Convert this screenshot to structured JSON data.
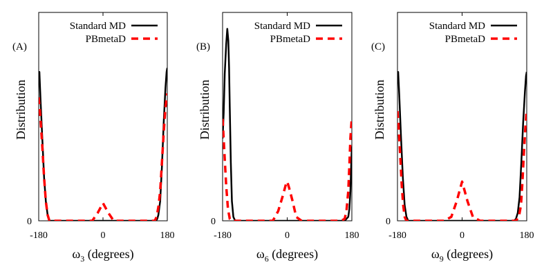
{
  "chart_data": [
    {
      "type": "line",
      "panel_label": "(A)",
      "xlabel_symbol": "ω",
      "xlabel_sub": "3",
      "xlabel_rest": " (degrees)",
      "ylabel": "Distribution",
      "xlim": [
        -180,
        180
      ],
      "ylim": [
        0,
        1
      ],
      "xticks": [
        "-180",
        "0",
        "180"
      ],
      "yticks": [
        "0"
      ],
      "legend_position": "top-right",
      "series": [
        {
          "name": "Standard MD",
          "color": "#000000",
          "style": "solid",
          "x": [
            -180,
            -178,
            -175,
            -170,
            -165,
            -160,
            -155,
            -150,
            -140,
            -100,
            -50,
            0,
            50,
            100,
            140,
            148,
            152,
            155,
            160,
            165,
            170,
            175,
            178,
            180
          ],
          "y": [
            0.72,
            0.76,
            0.62,
            0.42,
            0.22,
            0.1,
            0.03,
            0.0,
            0.0,
            0.0,
            0.0,
            0.0,
            0.0,
            0.0,
            0.0,
            0.0,
            0.01,
            0.03,
            0.1,
            0.28,
            0.5,
            0.68,
            0.76,
            0.78
          ]
        },
        {
          "name": "PBmetaD",
          "color": "#ff0000",
          "style": "dashed",
          "x": [
            -180,
            -175,
            -170,
            -165,
            -160,
            -155,
            -150,
            -145,
            -100,
            -50,
            -30,
            -15,
            0,
            15,
            30,
            50,
            100,
            145,
            150,
            155,
            160,
            165,
            170,
            175,
            180
          ],
          "y": [
            0.63,
            0.52,
            0.38,
            0.22,
            0.1,
            0.03,
            0.0,
            0.0,
            0.0,
            0.0,
            0.0,
            0.04,
            0.09,
            0.04,
            0.0,
            0.0,
            0.0,
            0.0,
            0.02,
            0.07,
            0.15,
            0.3,
            0.45,
            0.58,
            0.65
          ]
        }
      ]
    },
    {
      "type": "line",
      "panel_label": "(B)",
      "xlabel_symbol": "ω",
      "xlabel_sub": "6",
      "xlabel_rest": " (degrees)",
      "ylabel": "Distribution",
      "xlim": [
        -180,
        180
      ],
      "ylim": [
        0,
        1
      ],
      "xticks": [
        "-180",
        "0",
        "180"
      ],
      "yticks": [
        "0"
      ],
      "legend_position": "top-right",
      "series": [
        {
          "name": "Standard MD",
          "color": "#000000",
          "style": "solid",
          "x": [
            -180,
            -177,
            -174,
            -170,
            -167,
            -164,
            -162,
            -160,
            -157,
            -154,
            -150,
            -145,
            -100,
            -50,
            0,
            50,
            100,
            150,
            160,
            165,
            170,
            173,
            176,
            178,
            180
          ],
          "y": [
            0.42,
            0.55,
            0.75,
            0.9,
            0.98,
            0.92,
            0.78,
            0.58,
            0.3,
            0.1,
            0.02,
            0.0,
            0.0,
            0.0,
            0.0,
            0.0,
            0.0,
            0.0,
            0.0,
            0.01,
            0.02,
            0.06,
            0.15,
            0.28,
            0.38
          ]
        },
        {
          "name": "PBmetaD",
          "color": "#ff0000",
          "style": "dashed",
          "x": [
            -180,
            -175,
            -170,
            -165,
            -160,
            -155,
            -150,
            -100,
            -40,
            -25,
            -12,
            -3,
            0,
            5,
            15,
            25,
            40,
            100,
            150,
            160,
            165,
            170,
            173,
            176,
            180
          ],
          "y": [
            0.52,
            0.35,
            0.18,
            0.06,
            0.01,
            0.0,
            0.0,
            0.0,
            0.0,
            0.05,
            0.13,
            0.19,
            0.2,
            0.17,
            0.1,
            0.02,
            0.0,
            0.0,
            0.0,
            0.01,
            0.05,
            0.15,
            0.28,
            0.42,
            0.53
          ]
        }
      ]
    },
    {
      "type": "line",
      "panel_label": "(C)",
      "xlabel_symbol": "ω",
      "xlabel_sub": "9",
      "xlabel_rest": " (degrees)",
      "ylabel": "Distribution",
      "xlim": [
        -180,
        180
      ],
      "ylim": [
        0,
        1
      ],
      "xticks": [
        "-180",
        "0",
        "180"
      ],
      "yticks": [
        "0"
      ],
      "legend_position": "top-right",
      "series": [
        {
          "name": "Standard MD",
          "color": "#000000",
          "style": "solid",
          "x": [
            -180,
            -178,
            -175,
            -170,
            -165,
            -160,
            -155,
            -150,
            -140,
            -100,
            -50,
            0,
            50,
            100,
            145,
            150,
            155,
            160,
            165,
            170,
            175,
            178,
            180
          ],
          "y": [
            0.7,
            0.76,
            0.64,
            0.42,
            0.22,
            0.08,
            0.02,
            0.0,
            0.0,
            0.0,
            0.0,
            0.0,
            0.0,
            0.0,
            0.0,
            0.01,
            0.04,
            0.12,
            0.3,
            0.5,
            0.66,
            0.74,
            0.76
          ]
        },
        {
          "name": "PBmetaD",
          "color": "#ff0000",
          "style": "dashed",
          "x": [
            -180,
            -176,
            -172,
            -168,
            -164,
            -160,
            -155,
            -150,
            -100,
            -50,
            -30,
            -15,
            0,
            15,
            30,
            50,
            100,
            150,
            158,
            164,
            168,
            172,
            176,
            180
          ],
          "y": [
            0.56,
            0.45,
            0.32,
            0.18,
            0.08,
            0.02,
            0.0,
            0.0,
            0.0,
            0.0,
            0.02,
            0.1,
            0.2,
            0.1,
            0.02,
            0.0,
            0.0,
            0.0,
            0.02,
            0.08,
            0.2,
            0.34,
            0.47,
            0.57
          ]
        }
      ]
    }
  ]
}
